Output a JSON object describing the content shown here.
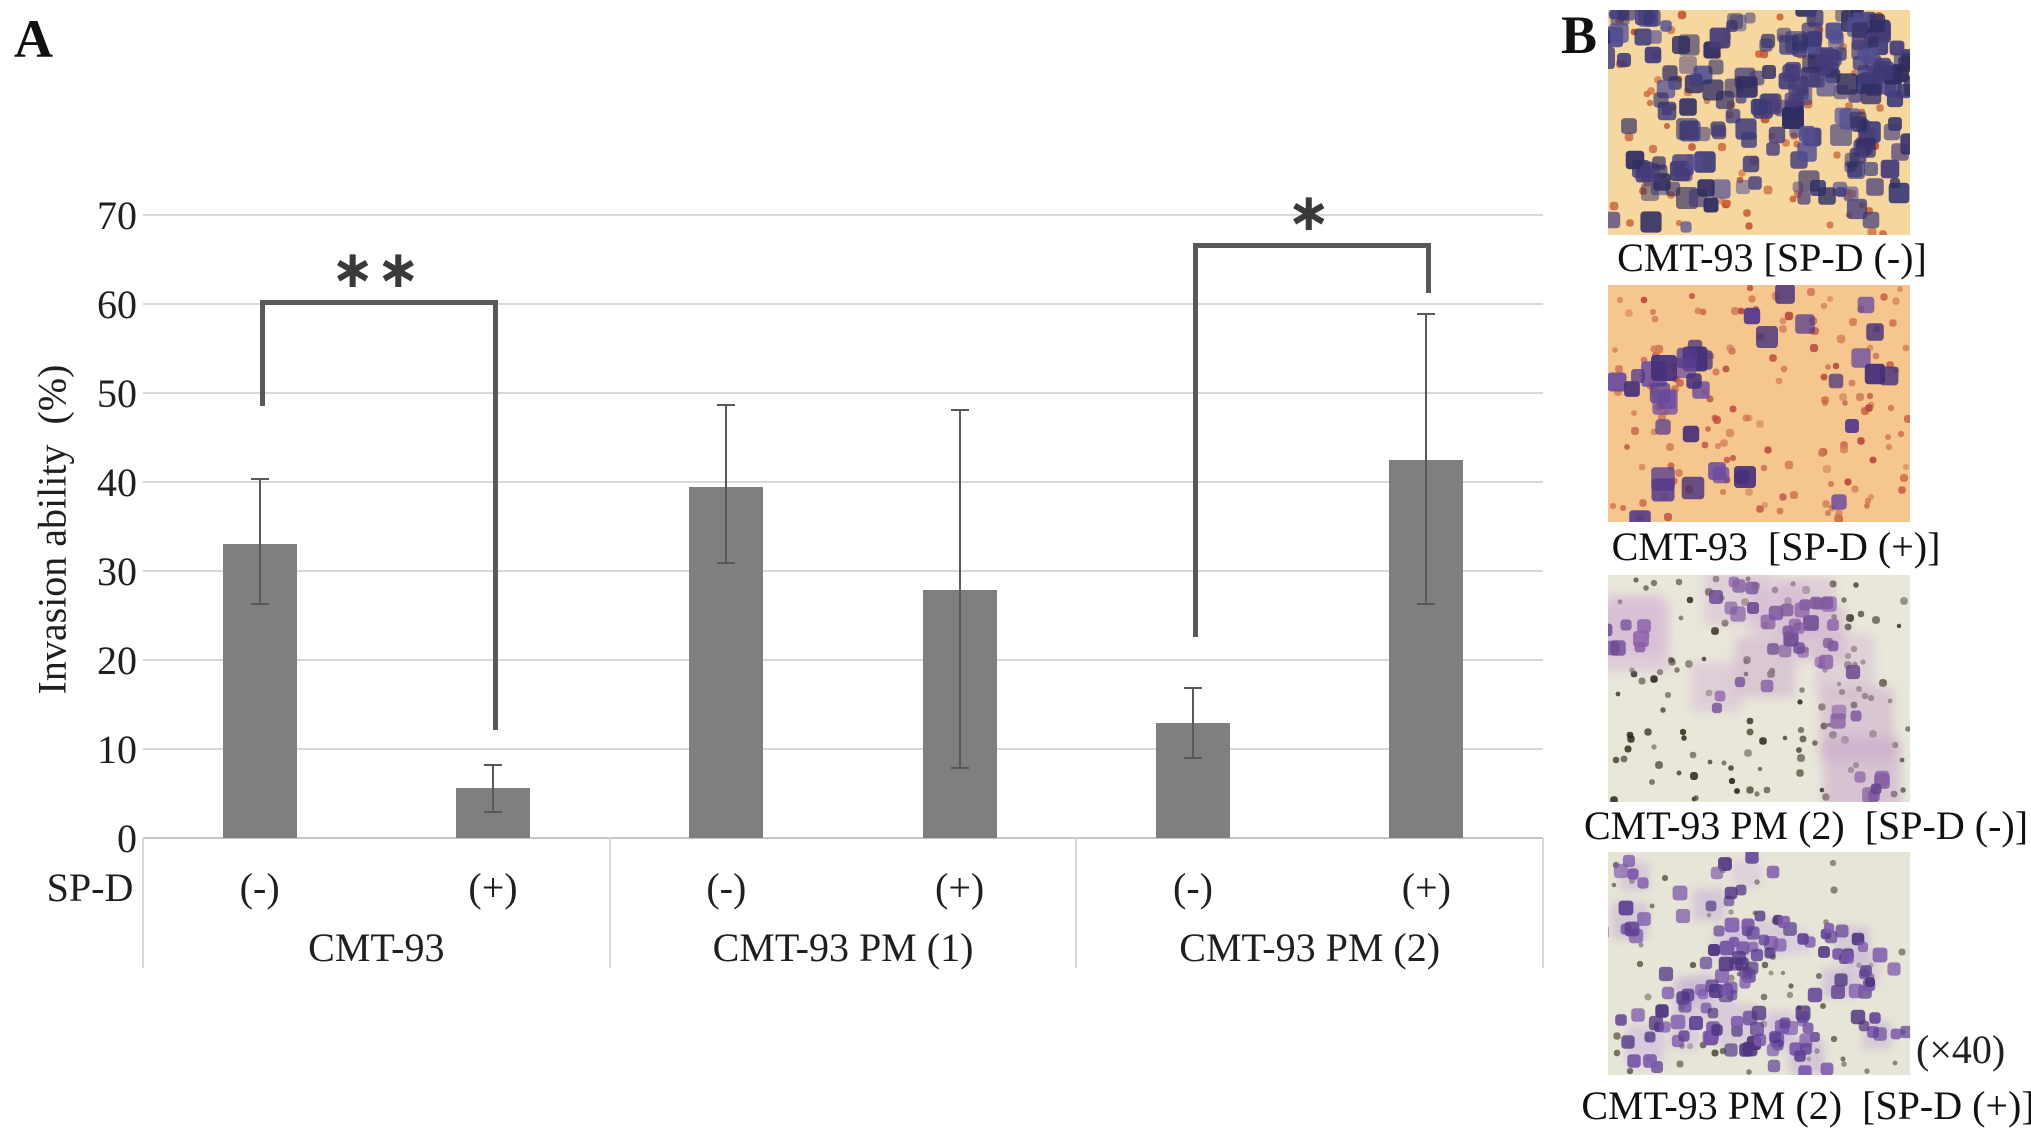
{
  "panel_a": {
    "label": "A",
    "chart_data": {
      "type": "bar",
      "title": "",
      "xlabel": "",
      "ylabel": "Invasion ability  (%)",
      "ylim": [
        0,
        70
      ],
      "yticks": [
        0,
        10,
        20,
        30,
        40,
        50,
        60,
        70
      ],
      "grid": "horizontal",
      "x_axis_row_label": "SP-D",
      "groups": [
        {
          "name": "CMT-93",
          "bars": [
            {
              "condition": "(-)",
              "value": 33.0,
              "err_low": 26.3,
              "err_high": 40.3
            },
            {
              "condition": "(+)",
              "value": 5.6,
              "err_low": 2.9,
              "err_high": 8.2
            }
          ]
        },
        {
          "name": "CMT-93 PM (1)",
          "bars": [
            {
              "condition": "(-)",
              "value": 39.4,
              "err_low": 30.9,
              "err_high": 48.7
            },
            {
              "condition": "(+)",
              "value": 27.9,
              "err_low": 7.9,
              "err_high": 48.1
            }
          ]
        },
        {
          "name": "CMT-93 PM (2)",
          "bars": [
            {
              "condition": "(-)",
              "value": 12.9,
              "err_low": 9.0,
              "err_high": 16.9
            },
            {
              "condition": "(+)",
              "value": 42.5,
              "err_low": 26.3,
              "err_high": 58.9
            }
          ]
        }
      ],
      "significance": [
        {
          "label": "**",
          "bar_left": 0,
          "bar_right": 1,
          "bracket_y": 60.5,
          "left_arm_bottom": 48.5,
          "right_arm_bottom": 12.1
        },
        {
          "label": "*",
          "bar_left": 4,
          "bar_right": 5,
          "bracket_y": 66.8,
          "left_arm_bottom": 22.6,
          "right_arm_bottom": 61.2
        }
      ],
      "colors": {
        "bar": "#7f7f7f",
        "error_bar": "#595959",
        "bracket": "#595959",
        "gridline": "#d9d9d9",
        "axis_line": "#c6c6c6",
        "text": "#1f1f1f"
      }
    }
  },
  "panel_b": {
    "label": "B",
    "magnification": "(×40)",
    "images": [
      {
        "caption": "CMT-93 [SP-D (-)]",
        "style": "dense-blue-clusters",
        "palette": {
          "background": "#f6d7a0",
          "cells": [
            "#3c3a78",
            "#2f2d61",
            "#514e92",
            "#463b79"
          ],
          "dots": [
            "#cf6d3a",
            "#c2582f"
          ]
        }
      },
      {
        "caption": "CMT-93  [SP-D (+)]",
        "style": "sparse-purple-blobs",
        "palette": {
          "background": "#f5c68d",
          "cells": [
            "#543a8c",
            "#452f7a",
            "#6a4a9e"
          ],
          "dots": [
            "#c75f47",
            "#b84a3f",
            "#d07a55"
          ]
        }
      },
      {
        "caption": "CMT-93 PM (2)  [SP-D (-)]",
        "style": "clustered-pink-cells",
        "palette": {
          "background": "#e9e7da",
          "cells": [
            "#7c569e",
            "#8a5fa8",
            "#69458f"
          ],
          "halo": [
            "#c8a5ca",
            "#d4b4d4"
          ],
          "specks": [
            "#3e3b26",
            "#54503a",
            "#2d2b1d"
          ]
        }
      },
      {
        "caption": "CMT-93 PM (2)  [SP-D (+)]",
        "style": "dense-lavender-cells",
        "palette": {
          "background": "#e7e5d7",
          "cells": [
            "#5f4195",
            "#7b57ab",
            "#4e3480"
          ],
          "halo": [
            "#cfbcdf",
            "#c3aed6"
          ],
          "specks": [
            "#3e3b26",
            "#55523c"
          ]
        }
      }
    ]
  }
}
